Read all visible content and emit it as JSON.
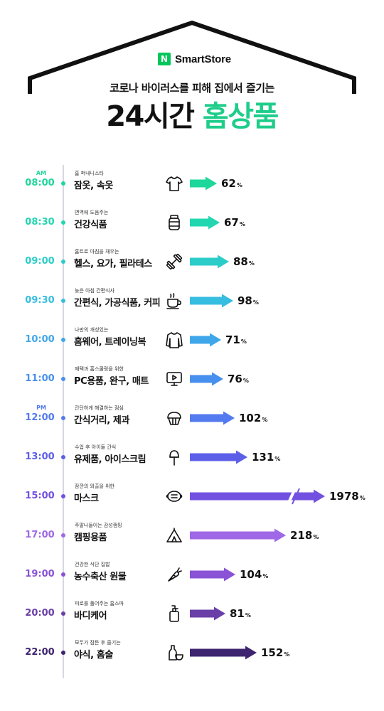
{
  "header": {
    "brand_mark": "N",
    "brand_name": "SmartStore",
    "subtitle": "코로나 바이러스를 피해 집에서 즐기는",
    "title_black": "24시간",
    "title_green": "홈상품"
  },
  "colors": {
    "brand_green": "#03c75a",
    "title_green": "#1fcd8a",
    "roof": "#111111"
  },
  "chart_data": {
    "type": "bar",
    "orientation": "horizontal",
    "unit": "%",
    "title": "24시간 홈상품",
    "items": [
      {
        "ampm": "AM",
        "time": "08:00",
        "desc": "홈 퍼내니스타",
        "label": "잠옷, 속옷",
        "value": 62,
        "value_label": "62",
        "icon": "tshirt-icon",
        "color": "#1ed79a"
      },
      {
        "ampm": "",
        "time": "08:30",
        "desc": "면역에 도움주는",
        "label": "건강식품",
        "value": 67,
        "value_label": "67",
        "icon": "supplement-jar-icon",
        "color": "#22d6b0"
      },
      {
        "ampm": "",
        "time": "09:00",
        "desc": "홈트로 아침을 채우는",
        "label": "헬스, 요가, 필라테스",
        "value": 88,
        "value_label": "88",
        "icon": "dumbbell-icon",
        "color": "#2ccdc8"
      },
      {
        "ampm": "",
        "time": "09:30",
        "desc": "늦은 아침 간편식사",
        "label": "간편식, 가공식품, 커피",
        "value": 98,
        "value_label": "98",
        "icon": "coffee-cup-icon",
        "color": "#36bde0"
      },
      {
        "ampm": "",
        "time": "10:00",
        "desc": "나만의 개성있는",
        "label": "홈웨어, 트레이닝복",
        "value": 71,
        "value_label": "71",
        "icon": "sweatshirt-icon",
        "color": "#3fa6ea"
      },
      {
        "ampm": "",
        "time": "11:00",
        "desc": "재택과 홈스쿨링을 위한",
        "label": "PC용품, 완구, 매트",
        "value": 76,
        "value_label": "76",
        "icon": "monitor-play-icon",
        "color": "#4890ee"
      },
      {
        "ampm": "PM",
        "time": "12:00",
        "desc": "간단하게 해결하는 점심",
        "label": "간식거리, 제과",
        "value": 102,
        "value_label": "102",
        "icon": "cupcake-icon",
        "color": "#537aee"
      },
      {
        "ampm": "",
        "time": "13:00",
        "desc": "수업 후 아이들 간식",
        "label": "유제품, 아이스크림",
        "value": 131,
        "value_label": "131",
        "icon": "ice-cream-icon",
        "color": "#5c60e8"
      },
      {
        "ampm": "",
        "time": "15:00",
        "desc": "잠깐의 외출을 위한",
        "label": "마스크",
        "value": 1978,
        "value_label": "1978",
        "icon": "face-mask-icon",
        "color": "#7351e0",
        "axis_break": true
      },
      {
        "ampm": "",
        "time": "17:00",
        "desc": "주말나들이는 감성캠핑",
        "label": "캠핑용품",
        "value": 218,
        "value_label": "218",
        "icon": "tent-icon",
        "color": "#9f68e6"
      },
      {
        "ampm": "",
        "time": "19:00",
        "desc": "건강한 식단 집밥",
        "label": "농수축산 원물",
        "value": 104,
        "value_label": "104",
        "icon": "carrot-icon",
        "color": "#8a52d6"
      },
      {
        "ampm": "",
        "time": "20:00",
        "desc": "피로를 풀어주는 홈스파",
        "label": "바디케어",
        "value": 81,
        "value_label": "81",
        "icon": "pump-bottle-icon",
        "color": "#6a3fa8"
      },
      {
        "ampm": "",
        "time": "22:00",
        "desc": "모두가 잠든 후 즐기는",
        "label": "야식, 홈술",
        "value": 152,
        "value_label": "152",
        "icon": "bottle-glass-icon",
        "color": "#3e2470"
      }
    ]
  }
}
